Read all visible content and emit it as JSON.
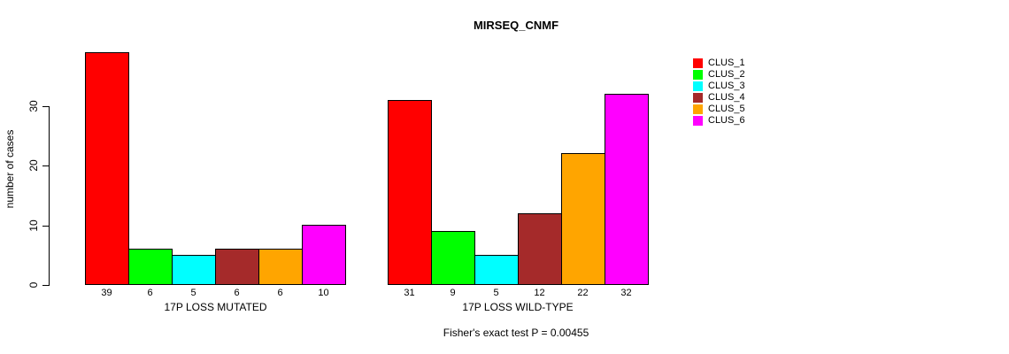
{
  "chart_data": {
    "type": "bar",
    "title": "MIRSEQ_CNMF",
    "ylabel": "number of cases",
    "xlabel": "",
    "categories": [
      "17P LOSS MUTATED",
      "17P LOSS WILD-TYPE"
    ],
    "series": [
      {
        "name": "CLUS_1",
        "color": "#FF0000",
        "values": [
          39,
          31
        ]
      },
      {
        "name": "CLUS_2",
        "color": "#00FF00",
        "values": [
          6,
          9
        ]
      },
      {
        "name": "CLUS_3",
        "color": "#00FFFF",
        "values": [
          5,
          5
        ]
      },
      {
        "name": "CLUS_4",
        "color": "#A52A2A",
        "values": [
          6,
          12
        ]
      },
      {
        "name": "CLUS_5",
        "color": "#FFA500",
        "values": [
          6,
          22
        ]
      },
      {
        "name": "CLUS_6",
        "color": "#FF00FF",
        "values": [
          10,
          32
        ]
      }
    ],
    "yticks": [
      0,
      10,
      20,
      30
    ],
    "ylim": [
      0,
      39.5
    ],
    "grid": false,
    "bar_value_labels": true,
    "legend_position": "right-outside",
    "footnote": "Fisher's exact test P = 0.00455",
    "axis_color": "#000000",
    "bar_border_color": "#000000"
  }
}
